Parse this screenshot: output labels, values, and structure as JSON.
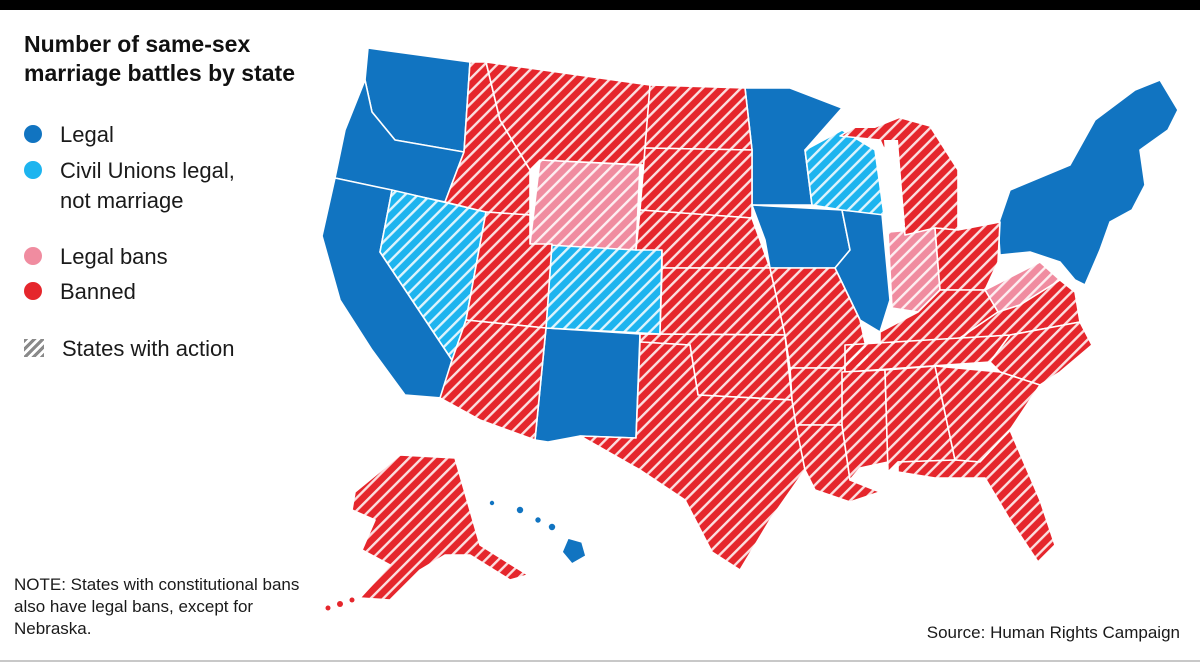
{
  "title": "Number of same-sex marriage battles by state",
  "legend": {
    "legal": "Legal",
    "civil_unions": "Civil Unions legal, not marriage",
    "legal_bans": "Legal bans",
    "banned": "Banned",
    "action": "States with action"
  },
  "colors": {
    "legal": "#1174c1",
    "civil_unions": "#1db4ef",
    "legal_bans": "#f08ca0",
    "banned": "#e5262c"
  },
  "note": "NOTE: States with constitutional bans also have legal bans, except for Nebraska.",
  "source": "Source: Human Rights Campaign"
}
